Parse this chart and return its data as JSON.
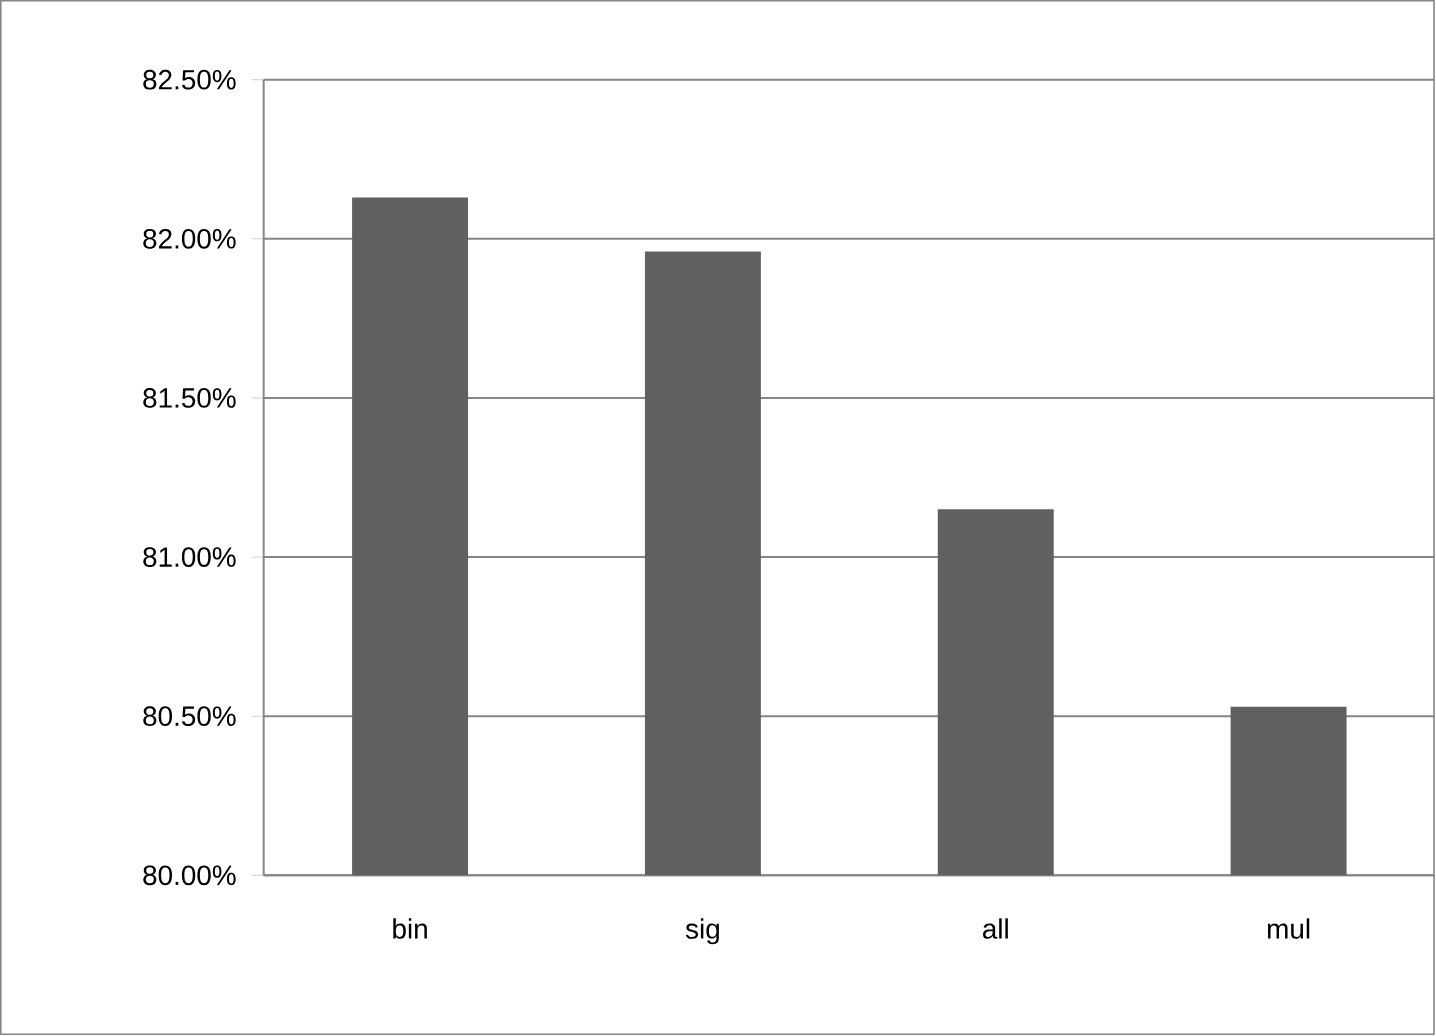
{
  "chart_data": {
    "type": "bar",
    "categories": [
      "bin",
      "sig",
      "all",
      "mul"
    ],
    "values": [
      82.13,
      81.96,
      81.15,
      80.53
    ],
    "color": "#606060",
    "ylim": [
      80,
      82.5
    ],
    "yticks": [
      {
        "value": 80,
        "label": "80.00%"
      },
      {
        "value": 80.5,
        "label": "80.50%"
      },
      {
        "value": 81,
        "label": "81.00%"
      },
      {
        "value": 81.5,
        "label": "81.50%"
      },
      {
        "value": 82,
        "label": "82.00%"
      },
      {
        "value": 82.5,
        "label": "82.50%"
      }
    ],
    "grid": "y"
  }
}
